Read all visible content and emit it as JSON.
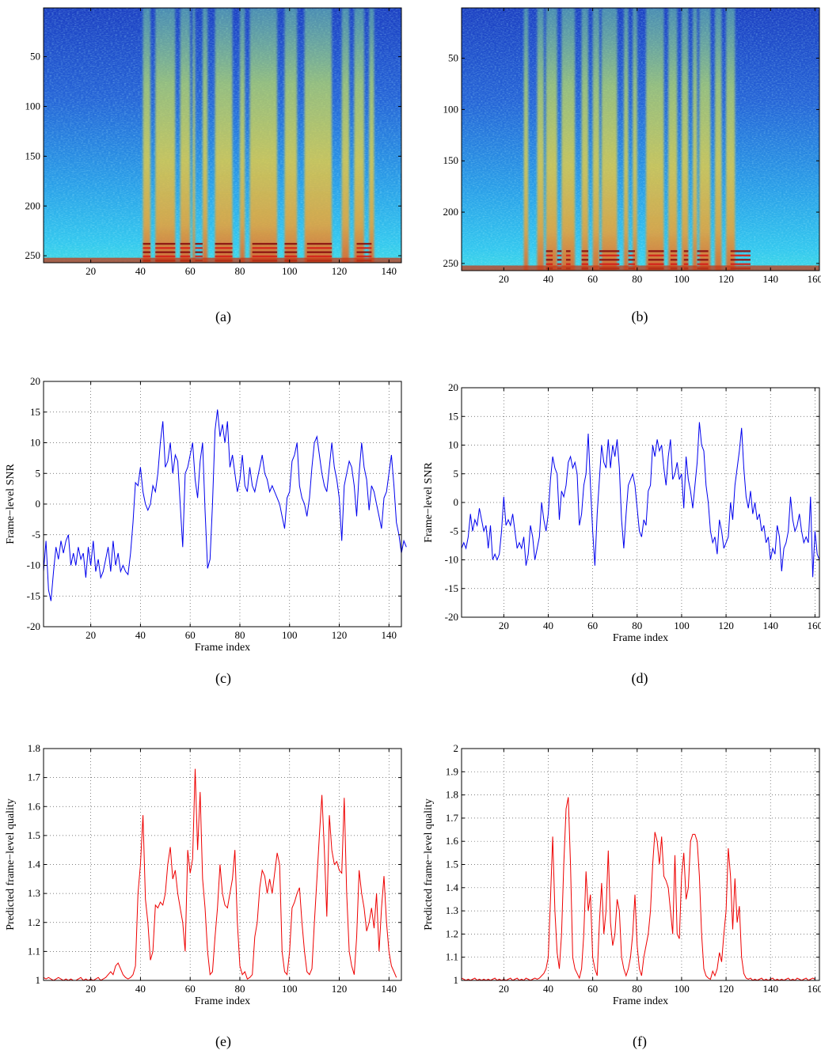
{
  "captions": [
    "(a)",
    "(b)",
    "(c)",
    "(d)",
    "(e)",
    "(f)"
  ],
  "chart_data": [
    {
      "type": "heatmap",
      "caption": "(a)",
      "colormap": "jet",
      "xlim": [
        1,
        145
      ],
      "ylim": [
        1,
        257
      ],
      "y_reversed": true,
      "xticks": [
        20,
        40,
        60,
        80,
        100,
        120,
        140
      ],
      "yticks": [
        50,
        100,
        150,
        200,
        250
      ],
      "bands": [
        [
          41,
          44
        ],
        [
          46,
          54
        ],
        [
          56,
          60
        ],
        [
          61,
          62
        ],
        [
          65,
          67
        ],
        [
          70,
          77
        ],
        [
          80,
          82
        ],
        [
          84,
          95
        ],
        [
          98,
          103
        ],
        [
          106,
          117
        ],
        [
          121,
          124
        ],
        [
          126,
          130
        ],
        [
          132,
          134
        ]
      ],
      "harmonic_bases": [
        [
          41,
          44
        ],
        [
          46,
          54
        ],
        [
          56,
          60
        ],
        [
          62,
          65
        ],
        [
          70,
          77
        ],
        [
          85,
          95
        ],
        [
          98,
          103
        ],
        [
          107,
          117
        ],
        [
          127,
          133
        ]
      ],
      "grid": false
    },
    {
      "type": "heatmap",
      "caption": "(b)",
      "colormap": "jet",
      "xlim": [
        1,
        162
      ],
      "ylim": [
        1,
        257
      ],
      "y_reversed": true,
      "xticks": [
        20,
        40,
        60,
        80,
        100,
        120,
        140,
        160
      ],
      "yticks": [
        50,
        100,
        150,
        200,
        250
      ],
      "bands": [
        [
          29,
          31
        ],
        [
          35,
          38
        ],
        [
          39,
          44
        ],
        [
          46,
          52
        ],
        [
          55,
          58
        ],
        [
          60,
          63
        ],
        [
          64,
          71
        ],
        [
          74,
          76
        ],
        [
          78,
          80
        ],
        [
          84,
          92
        ],
        [
          94,
          98
        ],
        [
          100,
          103
        ],
        [
          105,
          107
        ],
        [
          108,
          113
        ],
        [
          115,
          118
        ],
        [
          120,
          124
        ]
      ],
      "harmonic_bases": [
        [
          39,
          42
        ],
        [
          44,
          46
        ],
        [
          48,
          50
        ],
        [
          55,
          58
        ],
        [
          63,
          72
        ],
        [
          76,
          79
        ],
        [
          85,
          92
        ],
        [
          95,
          98
        ],
        [
          101,
          103
        ],
        [
          107,
          112
        ],
        [
          122,
          131
        ]
      ],
      "grid": false
    },
    {
      "type": "line",
      "caption": "(c)",
      "xlabel": "Frame index",
      "ylabel": "Frame−level SNR",
      "xlim": [
        1,
        145
      ],
      "ylim": [
        -20,
        20
      ],
      "xticks": [
        20,
        40,
        60,
        80,
        100,
        120,
        140
      ],
      "yticks": [
        -20,
        -15,
        -10,
        -5,
        0,
        5,
        10,
        15,
        20
      ],
      "grid": true,
      "color": "#0000ee",
      "x_start": 1,
      "y": [
        -11,
        -6,
        -14,
        -15.8,
        -11,
        -7,
        -9,
        -6,
        -8,
        -6,
        -5,
        -10,
        -8,
        -10,
        -7,
        -9,
        -8,
        -12,
        -7,
        -10,
        -6,
        -11,
        -9,
        -12,
        -11,
        -9,
        -7,
        -11,
        -6,
        -10,
        -8,
        -11,
        -10,
        -11,
        -11.5,
        -8,
        -3,
        3.5,
        3,
        6,
        2,
        0,
        -1,
        0,
        3,
        2,
        5,
        10,
        13.5,
        6,
        7,
        10,
        5,
        8,
        7,
        0,
        -7,
        5,
        6,
        8,
        10,
        4,
        1,
        7,
        10,
        -1,
        -10.5,
        -9,
        0,
        12,
        15.4,
        11,
        13,
        10,
        13.5,
        6,
        8,
        5,
        2,
        4,
        8,
        3,
        2,
        6,
        3,
        2,
        4,
        6,
        8,
        5,
        4,
        2,
        3,
        2,
        1,
        0,
        -2,
        -4,
        1,
        2,
        7,
        8,
        10,
        3,
        1,
        0,
        -2,
        1,
        6,
        10,
        11,
        8,
        5,
        3,
        2,
        6,
        10,
        6,
        4,
        1,
        -6,
        3,
        5,
        7,
        6,
        3,
        -2,
        5,
        10,
        6,
        4,
        -1,
        3,
        2,
        0,
        -2,
        -4,
        1,
        2,
        5,
        8,
        3,
        -3,
        -5,
        -8,
        -6,
        -7
      ]
    },
    {
      "type": "line",
      "caption": "(d)",
      "xlabel": "Frame index",
      "ylabel": "Frame−level SNR",
      "xlim": [
        1,
        162
      ],
      "ylim": [
        -20,
        20
      ],
      "xticks": [
        20,
        40,
        60,
        80,
        100,
        120,
        140,
        160
      ],
      "yticks": [
        -20,
        -15,
        -10,
        -5,
        0,
        5,
        10,
        15,
        20
      ],
      "grid": true,
      "color": "#0000ee",
      "x_start": 1,
      "y": [
        -8,
        -7,
        -8,
        -6,
        -2,
        -5,
        -3,
        -4,
        -1,
        -3,
        -5,
        -4,
        -8,
        -4,
        -10,
        -9,
        -10,
        -9,
        -5,
        1,
        -4,
        -3,
        -4,
        -2,
        -5,
        -8,
        -7,
        -8,
        -6,
        -11,
        -9,
        -4,
        -6,
        -10,
        -8,
        -6,
        0,
        -3,
        -5,
        -2,
        4,
        8,
        6,
        5,
        -3,
        2,
        1,
        3,
        7,
        8,
        6,
        7,
        5,
        -4,
        -2,
        3,
        5,
        12,
        3,
        -5,
        -11,
        -2,
        4,
        10,
        7,
        6,
        11,
        6,
        10,
        8,
        11,
        6,
        -3,
        -8,
        -2,
        3,
        4,
        5,
        3,
        -1,
        -5,
        -6,
        -3,
        -4,
        2,
        3,
        10,
        8,
        11,
        9,
        10,
        6,
        3,
        8,
        11,
        4,
        5,
        7,
        4,
        5,
        -1,
        8,
        4,
        2,
        -1,
        3,
        7,
        14,
        10,
        9,
        3,
        0,
        -5,
        -7,
        -6,
        -9,
        -3,
        -5,
        -8,
        -7,
        -6,
        0,
        -3,
        3,
        6,
        9,
        13,
        6,
        1,
        -1,
        2,
        -2,
        0,
        -3,
        -2,
        -5,
        -4,
        -7,
        -6,
        -10,
        -8,
        -9,
        -4,
        -6,
        -12,
        -8,
        -7,
        -5,
        1,
        -3,
        -5,
        -4,
        -2,
        -5,
        -7,
        -6,
        -7,
        1,
        -13,
        -5,
        -9,
        -10
      ]
    },
    {
      "type": "line",
      "caption": "(e)",
      "xlabel": "Frame index",
      "ylabel": "Predicted frame−level quality",
      "xlim": [
        1,
        145
      ],
      "ylim": [
        1,
        1.8
      ],
      "xticks": [
        20,
        40,
        60,
        80,
        100,
        120,
        140
      ],
      "yticks": [
        1,
        1.1,
        1.2,
        1.3,
        1.4,
        1.5,
        1.6,
        1.7,
        1.8
      ],
      "grid": true,
      "color": "#ee0000",
      "x_start": 1,
      "y": [
        1.01,
        1.005,
        1.01,
        1.005,
        1,
        1.005,
        1.01,
        1.005,
        1,
        1.005,
        1,
        1.005,
        1,
        1,
        1.005,
        1.01,
        1,
        1.005,
        1,
        1.005,
        1,
        1.005,
        1.01,
        1,
        1.005,
        1.01,
        1.02,
        1.03,
        1.02,
        1.05,
        1.06,
        1.04,
        1.02,
        1.01,
        1.005,
        1.01,
        1.02,
        1.05,
        1.3,
        1.4,
        1.57,
        1.28,
        1.2,
        1.07,
        1.1,
        1.26,
        1.25,
        1.27,
        1.26,
        1.3,
        1.4,
        1.46,
        1.35,
        1.38,
        1.3,
        1.25,
        1.2,
        1.1,
        1.45,
        1.37,
        1.42,
        1.73,
        1.45,
        1.65,
        1.35,
        1.25,
        1.1,
        1.02,
        1.03,
        1.15,
        1.25,
        1.4,
        1.3,
        1.26,
        1.25,
        1.3,
        1.35,
        1.45,
        1.2,
        1.05,
        1.02,
        1.03,
        1.005,
        1.01,
        1.02,
        1.15,
        1.2,
        1.32,
        1.38,
        1.36,
        1.3,
        1.35,
        1.3,
        1.37,
        1.44,
        1.4,
        1.1,
        1.03,
        1.02,
        1.1,
        1.25,
        1.27,
        1.3,
        1.32,
        1.2,
        1.1,
        1.03,
        1.02,
        1.04,
        1.2,
        1.35,
        1.5,
        1.64,
        1.45,
        1.22,
        1.57,
        1.45,
        1.4,
        1.41,
        1.38,
        1.37,
        1.63,
        1.3,
        1.1,
        1.05,
        1.02,
        1.15,
        1.38,
        1.3,
        1.25,
        1.17,
        1.2,
        1.25,
        1.18,
        1.3,
        1.1,
        1.25,
        1.36,
        1.2,
        1.1,
        1.05,
        1.03,
        1.01
      ]
    },
    {
      "type": "line",
      "caption": "(f)",
      "xlabel": "Frame index",
      "ylabel": "Predicted frame−level quality",
      "xlim": [
        1,
        162
      ],
      "ylim": [
        1,
        2
      ],
      "xticks": [
        20,
        40,
        60,
        80,
        100,
        120,
        140,
        160
      ],
      "yticks": [
        1,
        1.1,
        1.2,
        1.3,
        1.4,
        1.5,
        1.6,
        1.7,
        1.8,
        1.9,
        2
      ],
      "grid": true,
      "color": "#ee0000",
      "x_start": 1,
      "y": [
        1.01,
        1.005,
        1,
        1.005,
        1,
        1.005,
        1.01,
        1,
        1.005,
        1,
        1.005,
        1,
        1.005,
        1,
        1.005,
        1.01,
        1,
        1.005,
        1,
        1.005,
        1,
        1.005,
        1.01,
        1,
        1.005,
        1.01,
        1,
        1.005,
        1,
        1.01,
        1.005,
        1,
        1.005,
        1.01,
        1.005,
        1.01,
        1.02,
        1.03,
        1.05,
        1.1,
        1.35,
        1.62,
        1.3,
        1.12,
        1.05,
        1.2,
        1.5,
        1.74,
        1.79,
        1.5,
        1.1,
        1.05,
        1.03,
        1.01,
        1.05,
        1.2,
        1.47,
        1.3,
        1.37,
        1.1,
        1.05,
        1.02,
        1.25,
        1.42,
        1.2,
        1.3,
        1.56,
        1.25,
        1.15,
        1.2,
        1.35,
        1.3,
        1.1,
        1.05,
        1.02,
        1.05,
        1.1,
        1.2,
        1.37,
        1.15,
        1.05,
        1.02,
        1.1,
        1.15,
        1.2,
        1.3,
        1.5,
        1.64,
        1.6,
        1.5,
        1.62,
        1.45,
        1.43,
        1.4,
        1.3,
        1.2,
        1.54,
        1.2,
        1.18,
        1.45,
        1.55,
        1.35,
        1.4,
        1.6,
        1.63,
        1.63,
        1.6,
        1.45,
        1.2,
        1.05,
        1.02,
        1.01,
        1.005,
        1.04,
        1.02,
        1.05,
        1.12,
        1.08,
        1.2,
        1.3,
        1.57,
        1.45,
        1.22,
        1.44,
        1.25,
        1.32,
        1.1,
        1.03,
        1.01,
        1.005,
        1.01,
        1,
        1.005,
        1,
        1.005,
        1.01,
        1,
        1.005,
        1,
        1.005,
        1.01,
        1,
        1.005,
        1,
        1.005,
        1,
        1.005,
        1.01,
        1,
        1.005,
        1,
        1.01,
        1.005,
        1,
        1.005,
        1.01,
        1,
        1.005,
        1.01,
        1.005
      ]
    }
  ]
}
